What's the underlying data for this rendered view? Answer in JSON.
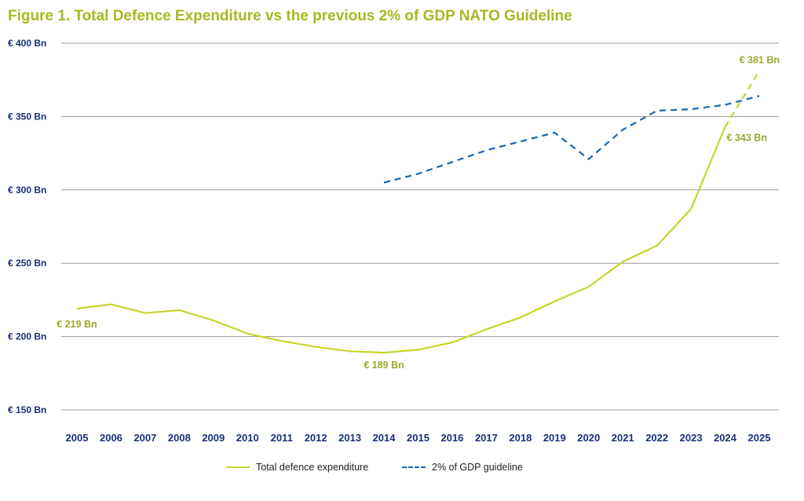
{
  "title": "Figure 1. Total Defence Expenditure vs the previous 2% of GDP NATO Guideline",
  "colors": {
    "title": "#a8b820",
    "total": "#c8d42a",
    "guideline": "#1565b0",
    "axis_text": "#1a2f7a",
    "data_label": "#9aa82a",
    "grid": "#9a9a9a"
  },
  "chart_data": {
    "type": "line",
    "title": "Figure 1. Total Defence Expenditure vs the previous 2% of GDP NATO Guideline",
    "x": [
      "2005",
      "2006",
      "2007",
      "2008",
      "2009",
      "2010",
      "2011",
      "2012",
      "2013",
      "2014",
      "2015",
      "2016",
      "2017",
      "2018",
      "2019",
      "2020",
      "2021",
      "2022",
      "2023",
      "2024",
      "2025"
    ],
    "ylim": [
      150,
      400
    ],
    "yticks": [
      150,
      200,
      250,
      300,
      350,
      400
    ],
    "ytick_labels": [
      "€ 150 Bn",
      "€ 200 Bn",
      "€ 250 Bn",
      "€ 300 Bn",
      "€ 350 Bn",
      "€ 400 Bn"
    ],
    "grid": true,
    "legend_position": "bottom",
    "series": [
      {
        "name": "Total defence expenditure",
        "style": "solid",
        "color": "#c8d42a",
        "values": [
          219,
          222,
          216,
          218,
          211,
          202,
          197,
          193,
          190,
          189,
          191,
          196,
          205,
          213,
          224,
          234,
          251,
          262,
          287,
          343,
          381
        ],
        "dashed_from_index": 19
      },
      {
        "name": "2% of GDP guideline",
        "style": "dashed",
        "color": "#1565b0",
        "values": [
          null,
          null,
          null,
          null,
          null,
          null,
          null,
          null,
          null,
          305,
          311,
          319,
          327,
          333,
          339,
          321,
          341,
          354,
          355,
          358,
          364
        ]
      }
    ],
    "annotations": [
      {
        "text": "€ 219 Bn",
        "x": "2005",
        "y": 219
      },
      {
        "text": "€ 189 Bn",
        "x": "2014",
        "y": 189
      },
      {
        "text": "€ 343 Bn",
        "x": "2024",
        "y": 343
      },
      {
        "text": "€ 381 Bn",
        "x": "2025",
        "y": 381
      }
    ]
  },
  "legend": {
    "total_label": "Total defence expenditure",
    "guideline_label": "2% of GDP guideline"
  }
}
